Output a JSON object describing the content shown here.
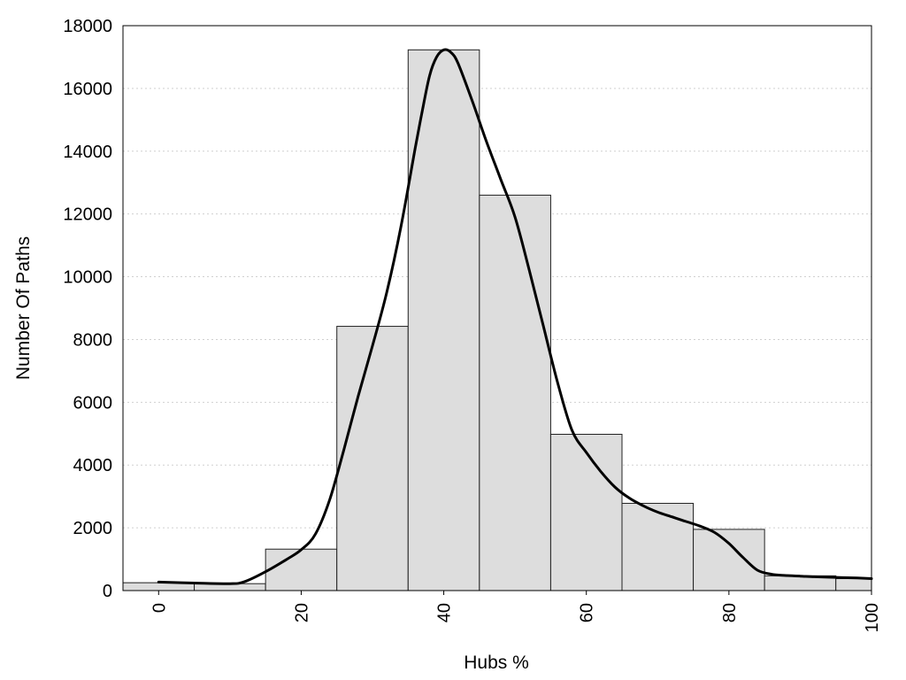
{
  "chart_data": {
    "type": "bar",
    "title": "",
    "xlabel": "Hubs %",
    "ylabel": "Number Of Paths",
    "xlim": [
      -5,
      100
    ],
    "ylim": [
      0,
      18000
    ],
    "x_ticks": [
      0,
      20,
      40,
      60,
      80,
      100
    ],
    "y_ticks": [
      0,
      2000,
      4000,
      6000,
      8000,
      10000,
      12000,
      14000,
      16000,
      18000
    ],
    "grid": "horizontal dotted",
    "bar_color": "#dddddd",
    "bins": [
      {
        "start": -5,
        "end": 5,
        "value": 250
      },
      {
        "start": 5,
        "end": 15,
        "value": 220
      },
      {
        "start": 15,
        "end": 25,
        "value": 1320
      },
      {
        "start": 25,
        "end": 35,
        "value": 8420
      },
      {
        "start": 35,
        "end": 45,
        "value": 17230
      },
      {
        "start": 45,
        "end": 55,
        "value": 12600
      },
      {
        "start": 55,
        "end": 65,
        "value": 4980
      },
      {
        "start": 65,
        "end": 75,
        "value": 2780
      },
      {
        "start": 75,
        "end": 85,
        "value": 1950
      },
      {
        "start": 85,
        "end": 95,
        "value": 470
      },
      {
        "start": 95,
        "end": 100,
        "value": 380
      }
    ],
    "density_curve": {
      "color": "#000000",
      "x": [
        0,
        5,
        10,
        12,
        15,
        18,
        20,
        22,
        24,
        26,
        28,
        30,
        32,
        34,
        36,
        37,
        38,
        39,
        40,
        41,
        42,
        44,
        46,
        48,
        50,
        52,
        54,
        56,
        58,
        60,
        62,
        64,
        66,
        68,
        70,
        72,
        74,
        76,
        78,
        80,
        82,
        84,
        86,
        88,
        90,
        92,
        95,
        98,
        100
      ],
      "y": [
        270,
        240,
        220,
        280,
        600,
        1000,
        1300,
        1800,
        2900,
        4500,
        6200,
        7800,
        9500,
        11600,
        14100,
        15300,
        16400,
        17000,
        17230,
        17150,
        16800,
        15600,
        14300,
        13100,
        11900,
        10200,
        8400,
        6600,
        5100,
        4400,
        3800,
        3300,
        2950,
        2700,
        2500,
        2350,
        2200,
        2050,
        1850,
        1500,
        1050,
        650,
        520,
        480,
        460,
        440,
        420,
        400,
        380
      ]
    }
  }
}
